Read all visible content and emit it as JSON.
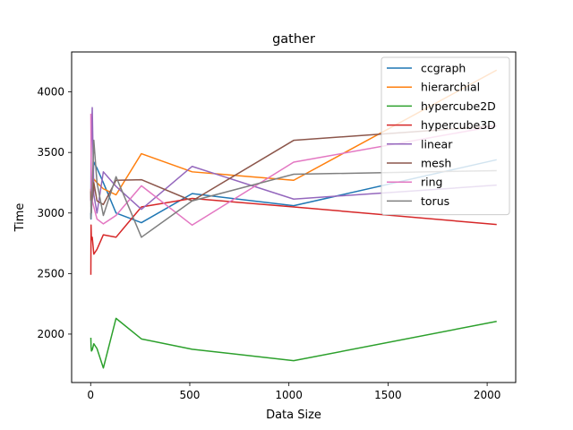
{
  "chart_data": {
    "type": "line",
    "title": "gather",
    "xlabel": "Data Size",
    "ylabel": "Time",
    "xlim": [
      -96,
      2144
    ],
    "ylim": [
      1600,
      4330
    ],
    "xticks": [
      0,
      500,
      1000,
      1500,
      2000
    ],
    "yticks": [
      2000,
      2500,
      3000,
      3500,
      4000
    ],
    "grid": false,
    "legend_position": "top-right",
    "x": [
      1,
      2,
      4,
      8,
      16,
      32,
      64,
      128,
      256,
      512,
      1024,
      2048
    ],
    "series": [
      {
        "name": "ccgraph",
        "color": "#1f77b4",
        "values": [
          3000,
          2950,
          3050,
          3180,
          3420,
          3370,
          3250,
          3000,
          2920,
          3160,
          3060,
          3440
        ]
      },
      {
        "name": "hierarchial",
        "color": "#ff7f0e",
        "values": [
          3200,
          3100,
          3050,
          3150,
          3280,
          3250,
          3200,
          3150,
          3490,
          3340,
          3270,
          4180
        ]
      },
      {
        "name": "hypercube2D",
        "color": "#2ca02c",
        "values": [
          1970,
          1900,
          1860,
          1870,
          1920,
          1880,
          1720,
          2130,
          1960,
          1875,
          1780,
          2105
        ]
      },
      {
        "name": "hypercube3D",
        "color": "#d62728",
        "values": [
          2490,
          2900,
          2780,
          2800,
          2660,
          2700,
          2820,
          2800,
          3050,
          3120,
          3050,
          2905
        ]
      },
      {
        "name": "linear",
        "color": "#9467bd",
        "values": [
          3100,
          3400,
          3600,
          3870,
          3150,
          3000,
          3340,
          3220,
          3030,
          3385,
          3115,
          3230
        ]
      },
      {
        "name": "mesh",
        "color": "#8c564b",
        "values": [
          3180,
          3050,
          3200,
          3100,
          3250,
          3100,
          3070,
          3270,
          3275,
          3100,
          3600,
          3720
        ]
      },
      {
        "name": "ring",
        "color": "#e377c2",
        "values": [
          3820,
          3550,
          3220,
          3100,
          3050,
          2950,
          2910,
          2980,
          3225,
          2900,
          3420,
          3720
        ]
      },
      {
        "name": "torus",
        "color": "#7f7f7f",
        "values": [
          2950,
          3100,
          3000,
          3200,
          3600,
          3250,
          2980,
          3300,
          2800,
          3100,
          3320,
          3350
        ]
      }
    ]
  }
}
